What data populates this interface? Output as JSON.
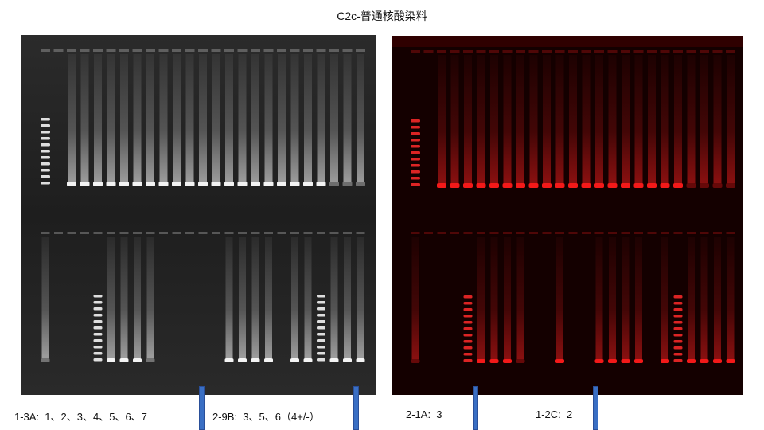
{
  "title": "C2c-普通核酸染料",
  "images": {
    "left_gel": "agarose gel electrophoresis image, grayscale (white bands on dark background), two rows of wells",
    "right_gel": "agarose gel electrophoresis image, red fluorescence on black background, two rows of wells"
  },
  "captions": {
    "c1": "1-3A:  1、2、3、4、5、6、7",
    "c2": "2-9B:  3、5、6（4+/-）",
    "c3": "2-1A:  3",
    "c4": "1-2C:  2"
  },
  "colors": {
    "left_bg": "#1c1c1c",
    "left_band": "#ffffff",
    "right_bg": "#140000",
    "right_band": "#ff1a1a",
    "marker": "#3a6fc4"
  }
}
